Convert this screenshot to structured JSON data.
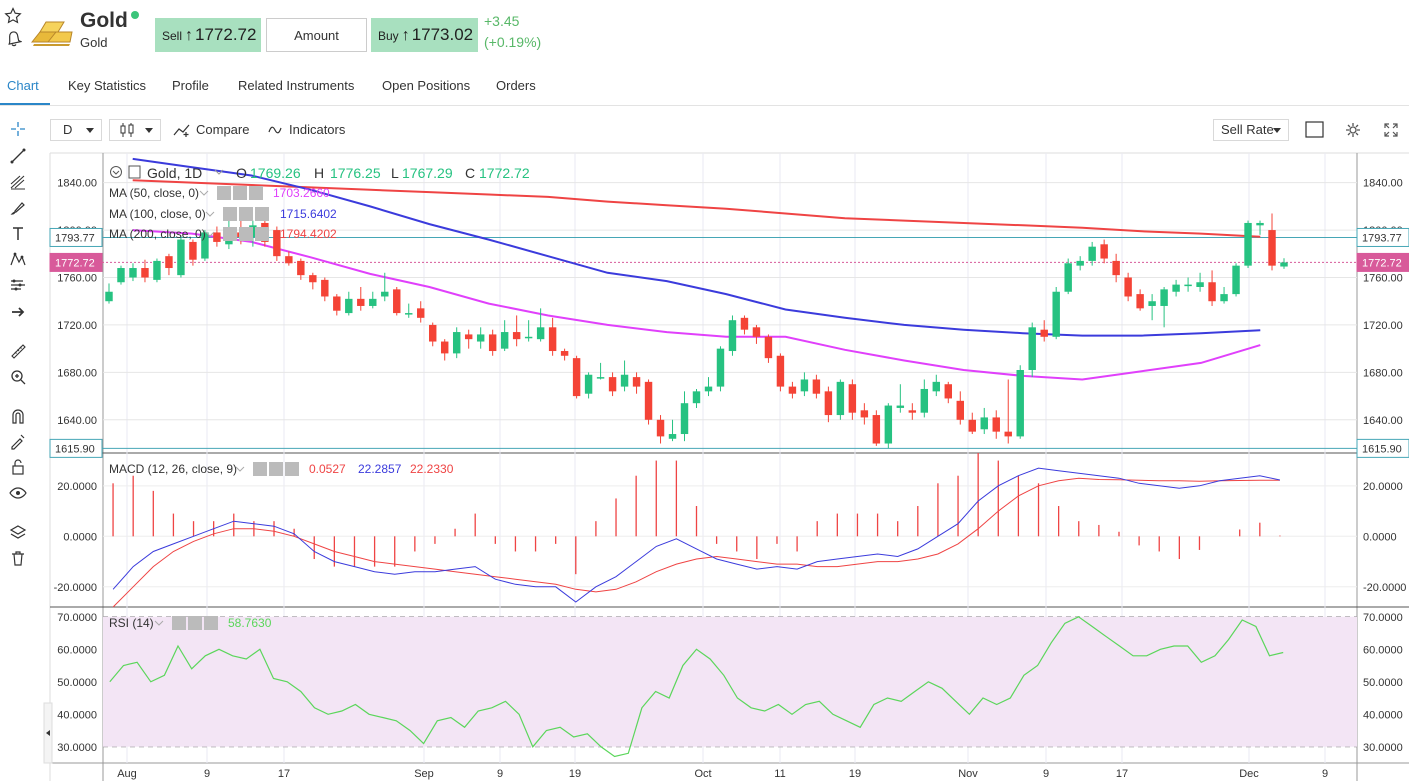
{
  "header": {
    "title": "Gold",
    "subtitle": "Gold",
    "sell_label": "Sell",
    "sell_price": "1772.72",
    "amount_label": "Amount",
    "buy_label": "Buy",
    "buy_price": "1773.02",
    "change_abs": "+3.45",
    "change_pct": "(+0.19%)"
  },
  "tabs": [
    "Chart",
    "Key Statistics",
    "Profile",
    "Related Instruments",
    "Open Positions",
    "Orders"
  ],
  "toolbar": {
    "interval": "D",
    "compare_label": "Compare",
    "indicators_label": "Indicators",
    "rate_type": "Sell Rate"
  },
  "legend": {
    "symbol": "Gold, 1D",
    "o_label": "O",
    "o_value": "1769.26",
    "h_label": "H",
    "h_value": "1776.25",
    "l_label": "L",
    "l_value": "1767.29",
    "c_label": "C",
    "c_value": "1772.72",
    "ma50_label": "MA (50, close, 0)",
    "ma50_value": "1703.2660",
    "ma100_label": "MA (100, close, 0)",
    "ma100_value": "1715.6402",
    "ma200_label": "MA (200, close, 0)",
    "ma200_value": "1794.4202",
    "macd_label": "MACD (12, 26, close, 9)",
    "macd_hist": "0.0527",
    "macd_line": "22.2857",
    "macd_signal": "22.2330",
    "rsi_label": "RSI (14)",
    "rsi_value": "58.7630"
  },
  "colors": {
    "up": "#26c281",
    "down": "#f44336",
    "ma50": "#e040fb",
    "ma100": "#3b3bdc",
    "ma200": "#ef4444",
    "macd": "#3b3bdc",
    "signal": "#ef4444",
    "rsi": "#5bd65b",
    "rsi_band": "#f3e5f5",
    "accent": "#2a86c8",
    "price_label_bg": "#d85a9a",
    "level_line": "#46a6b6"
  },
  "chart_data": {
    "type": "candlestick",
    "price_axis": {
      "ylim": [
        1612,
        1865
      ],
      "ticks": [
        "1840.00",
        "1800.00",
        "1760.00",
        "1720.00",
        "1680.00",
        "1640.00"
      ]
    },
    "macd_axis": {
      "ylim": [
        -28,
        33
      ],
      "ticks": [
        "20.0000",
        "0.0000",
        "-20.0000"
      ]
    },
    "rsi_axis": {
      "ylim": [
        25,
        73
      ],
      "ticks": [
        "70.0000",
        "60.0000",
        "50.0000",
        "40.0000",
        "30.0000"
      ],
      "band": [
        30,
        70
      ]
    },
    "x_labels": [
      "Aug",
      "9",
      "17",
      "Sep",
      "9",
      "19",
      "Oct",
      "11",
      "19",
      "Nov",
      "9",
      "17",
      "Dec",
      "9"
    ],
    "levels": [
      {
        "label": "1793.77",
        "value": 1793.77
      },
      {
        "label": "1772.72",
        "value": 1772.72
      },
      {
        "label": "1615.90",
        "value": 1615.9
      }
    ],
    "candles": [
      [
        1740,
        1748,
        1738,
        1755
      ],
      [
        1756,
        1768,
        1754,
        1770
      ],
      [
        1760,
        1768,
        1757,
        1772
      ],
      [
        1768,
        1760,
        1756,
        1775
      ],
      [
        1758,
        1774,
        1756,
        1776
      ],
      [
        1778,
        1768,
        1762,
        1780
      ],
      [
        1762,
        1792,
        1760,
        1795
      ],
      [
        1790,
        1775,
        1770,
        1792
      ],
      [
        1776,
        1798,
        1774,
        1800
      ],
      [
        1798,
        1790,
        1786,
        1803
      ],
      [
        1788,
        1796,
        1784,
        1812
      ],
      [
        1798,
        1794,
        1788,
        1815
      ],
      [
        1794,
        1804,
        1786,
        1808
      ],
      [
        1806,
        1790,
        1786,
        1810
      ],
      [
        1800,
        1778,
        1774,
        1803
      ],
      [
        1778,
        1772,
        1770,
        1782
      ],
      [
        1774,
        1762,
        1758,
        1776
      ],
      [
        1762,
        1756,
        1750,
        1764
      ],
      [
        1758,
        1744,
        1740,
        1760
      ],
      [
        1744,
        1732,
        1728,
        1746
      ],
      [
        1730,
        1742,
        1728,
        1748
      ],
      [
        1742,
        1736,
        1732,
        1752
      ],
      [
        1736,
        1742,
        1734,
        1748
      ],
      [
        1744,
        1748,
        1740,
        1764
      ],
      [
        1750,
        1730,
        1728,
        1752
      ],
      [
        1730,
        1730,
        1726,
        1738
      ],
      [
        1734,
        1726,
        1722,
        1740
      ],
      [
        1720,
        1706,
        1702,
        1722
      ],
      [
        1706,
        1696,
        1690,
        1708
      ],
      [
        1696,
        1714,
        1692,
        1718
      ],
      [
        1712,
        1708,
        1700,
        1716
      ],
      [
        1706,
        1712,
        1700,
        1718
      ],
      [
        1712,
        1698,
        1694,
        1716
      ],
      [
        1700,
        1714,
        1698,
        1724
      ],
      [
        1714,
        1708,
        1702,
        1728
      ],
      [
        1710,
        1710,
        1706,
        1724
      ],
      [
        1708,
        1718,
        1706,
        1734
      ],
      [
        1718,
        1698,
        1694,
        1726
      ],
      [
        1698,
        1694,
        1690,
        1700
      ],
      [
        1692,
        1660,
        1658,
        1694
      ],
      [
        1662,
        1678,
        1658,
        1680
      ],
      [
        1676,
        1676,
        1674,
        1688
      ],
      [
        1676,
        1664,
        1660,
        1680
      ],
      [
        1668,
        1678,
        1664,
        1690
      ],
      [
        1676,
        1668,
        1662,
        1680
      ],
      [
        1672,
        1640,
        1636,
        1674
      ],
      [
        1640,
        1626,
        1620,
        1644
      ],
      [
        1624,
        1628,
        1622,
        1640
      ],
      [
        1628,
        1654,
        1622,
        1664
      ],
      [
        1654,
        1664,
        1650,
        1666
      ],
      [
        1664,
        1668,
        1660,
        1676
      ],
      [
        1668,
        1700,
        1664,
        1702
      ],
      [
        1698,
        1724,
        1694,
        1728
      ],
      [
        1726,
        1716,
        1712,
        1728
      ],
      [
        1718,
        1710,
        1704,
        1720
      ],
      [
        1710,
        1692,
        1688,
        1712
      ],
      [
        1694,
        1668,
        1664,
        1696
      ],
      [
        1668,
        1662,
        1658,
        1672
      ],
      [
        1664,
        1674,
        1660,
        1680
      ],
      [
        1674,
        1662,
        1658,
        1678
      ],
      [
        1664,
        1644,
        1638,
        1668
      ],
      [
        1644,
        1672,
        1640,
        1674
      ],
      [
        1670,
        1646,
        1640,
        1674
      ],
      [
        1648,
        1642,
        1636,
        1654
      ],
      [
        1644,
        1620,
        1618,
        1648
      ],
      [
        1620,
        1652,
        1616,
        1654
      ],
      [
        1650,
        1652,
        1646,
        1670
      ],
      [
        1648,
        1646,
        1640,
        1654
      ],
      [
        1646,
        1666,
        1642,
        1674
      ],
      [
        1664,
        1672,
        1660,
        1678
      ],
      [
        1670,
        1658,
        1654,
        1672
      ],
      [
        1656,
        1640,
        1636,
        1664
      ],
      [
        1640,
        1630,
        1628,
        1646
      ],
      [
        1632,
        1642,
        1628,
        1650
      ],
      [
        1642,
        1630,
        1624,
        1648
      ],
      [
        1630,
        1626,
        1620,
        1674
      ],
      [
        1626,
        1682,
        1624,
        1686
      ],
      [
        1682,
        1718,
        1676,
        1722
      ],
      [
        1716,
        1710,
        1706,
        1724
      ],
      [
        1710,
        1748,
        1708,
        1752
      ],
      [
        1748,
        1772,
        1746,
        1776
      ],
      [
        1770,
        1774,
        1766,
        1778
      ],
      [
        1774,
        1786,
        1770,
        1790
      ],
      [
        1788,
        1776,
        1772,
        1792
      ],
      [
        1774,
        1762,
        1756,
        1780
      ],
      [
        1760,
        1744,
        1740,
        1764
      ],
      [
        1746,
        1734,
        1732,
        1750
      ],
      [
        1736,
        1740,
        1724,
        1746
      ],
      [
        1736,
        1750,
        1718,
        1752
      ],
      [
        1748,
        1754,
        1744,
        1758
      ],
      [
        1754,
        1754,
        1748,
        1760
      ],
      [
        1752,
        1756,
        1748,
        1764
      ],
      [
        1756,
        1740,
        1736,
        1766
      ],
      [
        1740,
        1746,
        1738,
        1752
      ],
      [
        1746,
        1770,
        1744,
        1772
      ],
      [
        1770,
        1806,
        1768,
        1808
      ],
      [
        1804,
        1806,
        1796,
        1808
      ],
      [
        1800,
        1770,
        1766,
        1814
      ],
      [
        1769.26,
        1772.72,
        1767.29,
        1776.25
      ]
    ],
    "ma50": [
      1800,
      1797,
      1790,
      1777,
      1763,
      1752,
      1738,
      1728,
      1720,
      1714,
      1710,
      1710,
      1699,
      1690,
      1682,
      1677,
      1674,
      1681,
      1688,
      1703
    ],
    "ma100": [
      1860,
      1853,
      1846,
      1834,
      1820,
      1805,
      1792,
      1778,
      1764,
      1757,
      1746,
      1733,
      1726,
      1720,
      1716,
      1713,
      1711,
      1711,
      1713,
      1715.6
    ],
    "ma200": [
      1842,
      1840,
      1838,
      1836,
      1834,
      1832,
      1830,
      1828,
      1824,
      1821,
      1818,
      1814,
      1810,
      1808,
      1806,
      1804,
      1802,
      1799,
      1797,
      1794.4
    ],
    "macd": [
      -21,
      -12,
      -6,
      -3,
      0,
      3,
      6,
      5,
      4,
      1,
      -6,
      -10,
      -12,
      -14,
      -15,
      -14,
      -14,
      -13,
      -12,
      -17,
      -19,
      -20,
      -20,
      -26,
      -20,
      -16,
      -10,
      -4,
      -1,
      -5,
      -9,
      -11,
      -13,
      -12,
      -13,
      -10,
      -9,
      -8,
      -7,
      -8,
      -5,
      0,
      5,
      14,
      20,
      24,
      27,
      26,
      25,
      24,
      23,
      21,
      20,
      19,
      20,
      22,
      23,
      24,
      22.3
    ],
    "signal": [
      -28,
      -20,
      -12,
      -6,
      -2,
      1,
      3,
      3,
      2,
      0,
      -3,
      -6,
      -8,
      -10,
      -11,
      -12,
      -13,
      -14,
      -15,
      -16,
      -17,
      -18,
      -19,
      -21,
      -22,
      -21,
      -18,
      -14,
      -11,
      -9,
      -8,
      -9,
      -10,
      -11,
      -11,
      -12,
      -12,
      -11,
      -10,
      -10,
      -9,
      -7,
      -3,
      3,
      10,
      16,
      20,
      22,
      23,
      22.5,
      22.4,
      22.2,
      22,
      22,
      21.8,
      22,
      22.1,
      22.2,
      22.2
    ],
    "rsi": [
      50,
      55,
      56,
      50,
      52,
      61,
      54,
      58,
      60,
      58,
      57,
      60,
      51,
      50,
      47,
      42,
      40,
      41,
      43,
      40,
      39,
      38,
      35,
      31,
      38,
      39,
      36,
      41,
      42,
      44,
      40,
      30,
      35,
      36,
      33,
      34,
      30,
      27,
      28,
      42,
      47,
      45,
      55,
      60,
      57,
      52,
      45,
      42,
      41,
      43,
      40,
      43,
      44,
      40,
      38,
      36,
      43,
      45,
      44,
      47,
      50,
      48,
      44,
      40,
      45,
      43,
      45,
      52,
      55,
      62,
      68,
      70,
      67,
      64,
      61,
      58,
      58,
      60,
      61,
      61,
      56,
      58,
      63,
      69,
      67,
      58,
      59
    ]
  }
}
